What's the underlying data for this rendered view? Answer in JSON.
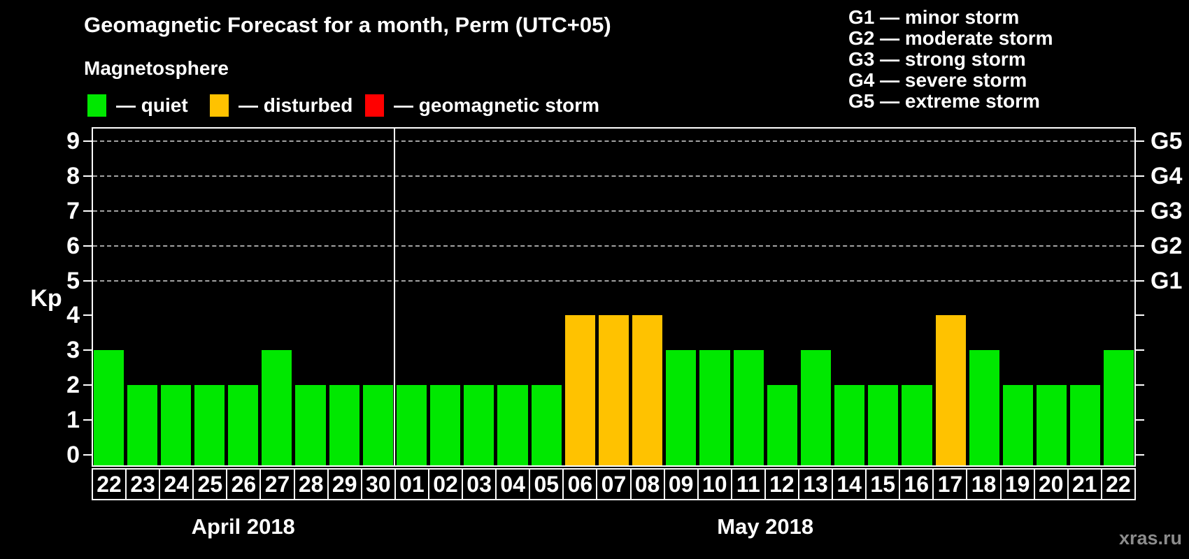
{
  "title": "Geomagnetic Forecast for a month, Perm (UTC+05)",
  "subtitle": "Magnetosphere",
  "legend": {
    "items": [
      {
        "label": "— quiet",
        "status": "quiet",
        "color": "#00e800"
      },
      {
        "label": "— disturbed",
        "status": "disturbed",
        "color": "#ffc200"
      },
      {
        "label": "— geomagnetic storm",
        "status": "storm",
        "color": "#ff0000"
      }
    ]
  },
  "g_legend": [
    "G1 — minor storm",
    "G2 — moderate storm",
    "G3 — strong storm",
    "G4 — severe storm",
    "G5 — extreme storm"
  ],
  "watermark": "xras.ru",
  "chart_data": {
    "type": "bar",
    "title": "Geomagnetic Forecast for a month, Perm (UTC+05)",
    "ylabel": "Kp",
    "ylim": [
      0,
      9
    ],
    "y_ticks": [
      0,
      1,
      2,
      3,
      4,
      5,
      6,
      7,
      8,
      9
    ],
    "grid_levels": [
      5,
      6,
      7,
      8,
      9
    ],
    "right_axis_labels": [
      {
        "level": 5,
        "label": "G1"
      },
      {
        "level": 6,
        "label": "G2"
      },
      {
        "level": 7,
        "label": "G3"
      },
      {
        "level": 8,
        "label": "G4"
      },
      {
        "level": 9,
        "label": "G5"
      }
    ],
    "status_colors": {
      "quiet": "#00e800",
      "disturbed": "#ffc200",
      "storm": "#ff0000"
    },
    "grid_on": true,
    "legend_position": "top-left",
    "months": [
      {
        "label": "April 2018",
        "points": [
          {
            "day": "22",
            "kp": 3,
            "status": "quiet"
          },
          {
            "day": "23",
            "kp": 2,
            "status": "quiet"
          },
          {
            "day": "24",
            "kp": 2,
            "status": "quiet"
          },
          {
            "day": "25",
            "kp": 2,
            "status": "quiet"
          },
          {
            "day": "26",
            "kp": 2,
            "status": "quiet"
          },
          {
            "day": "27",
            "kp": 3,
            "status": "quiet"
          },
          {
            "day": "28",
            "kp": 2,
            "status": "quiet"
          },
          {
            "day": "29",
            "kp": 2,
            "status": "quiet"
          },
          {
            "day": "30",
            "kp": 2,
            "status": "quiet"
          }
        ]
      },
      {
        "label": "May 2018",
        "points": [
          {
            "day": "01",
            "kp": 2,
            "status": "quiet"
          },
          {
            "day": "02",
            "kp": 2,
            "status": "quiet"
          },
          {
            "day": "03",
            "kp": 2,
            "status": "quiet"
          },
          {
            "day": "04",
            "kp": 2,
            "status": "quiet"
          },
          {
            "day": "05",
            "kp": 2,
            "status": "quiet"
          },
          {
            "day": "06",
            "kp": 4,
            "status": "disturbed"
          },
          {
            "day": "07",
            "kp": 4,
            "status": "disturbed"
          },
          {
            "day": "08",
            "kp": 4,
            "status": "disturbed"
          },
          {
            "day": "09",
            "kp": 3,
            "status": "quiet"
          },
          {
            "day": "10",
            "kp": 3,
            "status": "quiet"
          },
          {
            "day": "11",
            "kp": 3,
            "status": "quiet"
          },
          {
            "day": "12",
            "kp": 2,
            "status": "quiet"
          },
          {
            "day": "13",
            "kp": 3,
            "status": "quiet"
          },
          {
            "day": "14",
            "kp": 2,
            "status": "quiet"
          },
          {
            "day": "15",
            "kp": 2,
            "status": "quiet"
          },
          {
            "day": "16",
            "kp": 2,
            "status": "quiet"
          },
          {
            "day": "17",
            "kp": 4,
            "status": "disturbed"
          },
          {
            "day": "18",
            "kp": 3,
            "status": "quiet"
          },
          {
            "day": "19",
            "kp": 2,
            "status": "quiet"
          },
          {
            "day": "20",
            "kp": 2,
            "status": "quiet"
          },
          {
            "day": "21",
            "kp": 2,
            "status": "quiet"
          },
          {
            "day": "22",
            "kp": 3,
            "status": "quiet"
          }
        ]
      }
    ]
  }
}
